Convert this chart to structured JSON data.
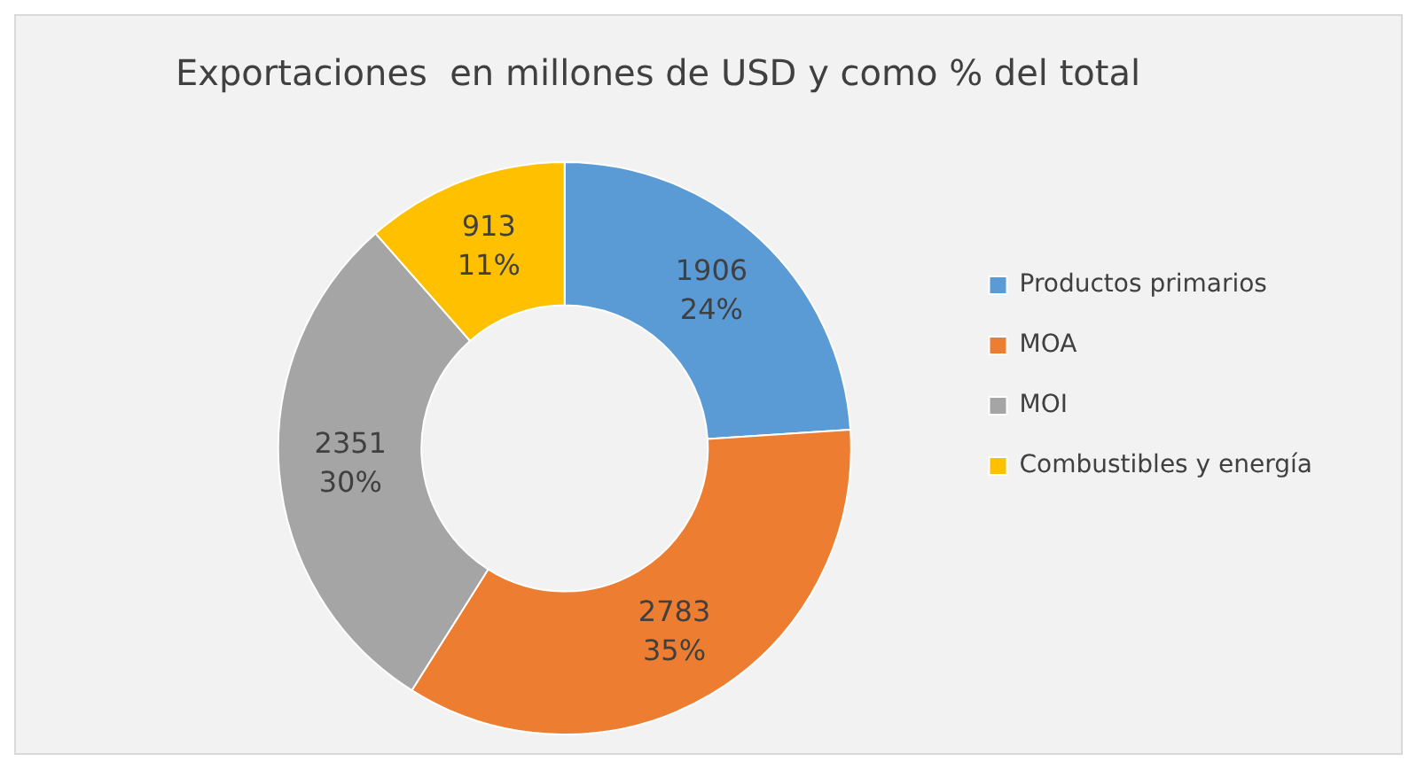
{
  "chart_data": {
    "type": "donut",
    "title": "Exportaciones  en millones de USD y como % del total",
    "categories": [
      "Productos primarios",
      "MOA",
      "MOI",
      "Combustibles y energía"
    ],
    "values": [
      1906,
      2783,
      2351,
      913
    ],
    "colors": [
      "#5b9bd5",
      "#ed7d31",
      "#a5a5a5",
      "#ffc000"
    ],
    "value_labels": [
      "1906\n24%",
      "2783\n35%",
      "2351\n30%",
      "913\n11%"
    ],
    "legend": "right"
  }
}
